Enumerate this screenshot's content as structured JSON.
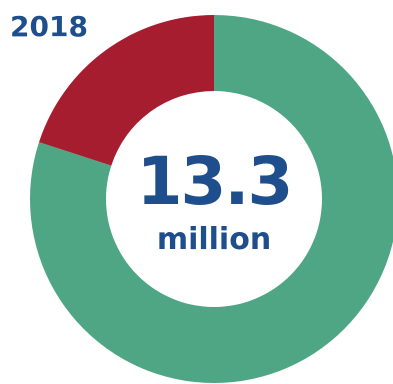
{
  "chart_data": {
    "type": "pie",
    "variant": "donut",
    "title": "2018",
    "center_value": "13.3",
    "center_unit": "million",
    "slices": [
      {
        "value": 0.8,
        "color": "#4ea685"
      },
      {
        "value": 0.2,
        "color": "#a71d30"
      }
    ]
  }
}
